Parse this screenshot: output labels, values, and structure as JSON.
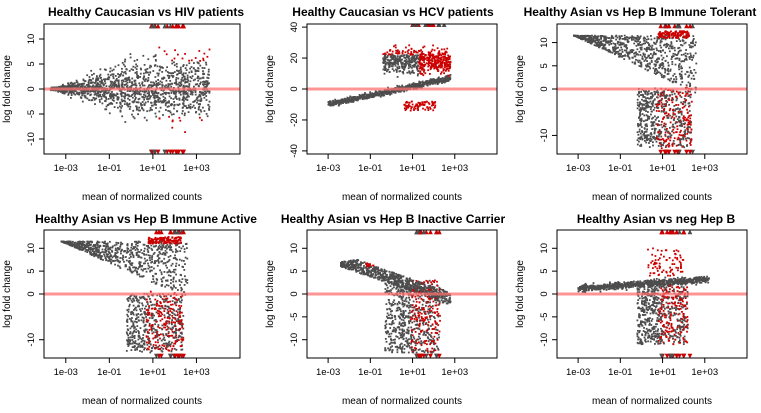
{
  "colors": {
    "points": "#4d4d4d",
    "significant": "#cc0000",
    "zero_line": "#ff7070"
  },
  "chart_data": [
    {
      "type": "scatter",
      "title": "Healthy Caucasian vs HIV patients",
      "xlabel": "mean of normalized counts",
      "ylabel": "log fold change",
      "x_scale": "log10",
      "x_ticks": [
        "1e-03",
        "1e-01",
        "1e+01",
        "1e+03"
      ],
      "x_tick_values": [
        0.001,
        0.1,
        10,
        1000
      ],
      "y_ticks": [
        10,
        5,
        0,
        -5,
        -10
      ],
      "xlim": [
        0.0001,
        100000
      ],
      "ylim": [
        -13,
        13
      ],
      "shape": "funnel"
    },
    {
      "type": "scatter",
      "title": "Healthy Caucasian vs HCV patients",
      "xlabel": "mean of normalized counts",
      "ylabel": "log fold change",
      "x_scale": "log10",
      "x_ticks": [
        "1e-03",
        "1e-01",
        "1e+01",
        "1e+03"
      ],
      "x_tick_values": [
        0.001,
        0.1,
        10,
        1000
      ],
      "y_ticks": [
        40,
        20,
        0,
        -20,
        -40
      ],
      "xlim": [
        0.0001,
        100000
      ],
      "ylim": [
        -42,
        42
      ],
      "shape": "split"
    },
    {
      "type": "scatter",
      "title": "Healthy Asian vs Hep B Immune Tolerant",
      "xlabel": "mean of normalized counts",
      "ylabel": "log fold change",
      "x_scale": "log10",
      "x_ticks": [
        "1e-03",
        "1e-01",
        "1e+01",
        "1e+03"
      ],
      "x_tick_values": [
        0.001,
        0.1,
        10,
        1000
      ],
      "y_ticks": [
        10,
        5,
        0,
        -10
      ],
      "xlim": [
        0.0001,
        100000
      ],
      "ylim": [
        -14,
        14
      ],
      "shape": "wedge"
    },
    {
      "type": "scatter",
      "title": "Healthy Asian vs Hep B Immune Active",
      "xlabel": "mean of normalized counts",
      "ylabel": "log fold change",
      "x_scale": "log10",
      "x_ticks": [
        "1e-03",
        "1e-01",
        "1e+01",
        "1e+03"
      ],
      "x_tick_values": [
        0.001,
        0.1,
        10,
        1000
      ],
      "y_ticks": [
        10,
        5,
        0,
        -10
      ],
      "xlim": [
        0.0001,
        100000
      ],
      "ylim": [
        -14,
        14
      ],
      "shape": "wedge"
    },
    {
      "type": "scatter",
      "title": "Healthy Asian vs Hep B Inactive Carrier",
      "xlabel": "mean of normalized counts",
      "ylabel": "log fold change",
      "x_scale": "log10",
      "x_ticks": [
        "1e-03",
        "1e-01",
        "1e+01",
        "1e+03"
      ],
      "x_tick_values": [
        0.001,
        0.1,
        10,
        1000
      ],
      "y_ticks": [
        10,
        5,
        0,
        -5,
        -10
      ],
      "xlim": [
        0.0001,
        100000
      ],
      "ylim": [
        -14,
        14
      ],
      "shape": "band"
    },
    {
      "type": "scatter",
      "title": "Healthy Asian vs neg Hep B",
      "xlabel": "mean of normalized counts",
      "ylabel": "log fold change",
      "x_scale": "log10",
      "x_ticks": [
        "1e-03",
        "1e-01",
        "1e+01",
        "1e+03"
      ],
      "x_tick_values": [
        0.001,
        0.1,
        10,
        1000
      ],
      "y_ticks": [
        10,
        5,
        0,
        -5,
        -10
      ],
      "xlim": [
        0.0001,
        100000
      ],
      "ylim": [
        -14,
        14
      ],
      "shape": "arc"
    }
  ]
}
